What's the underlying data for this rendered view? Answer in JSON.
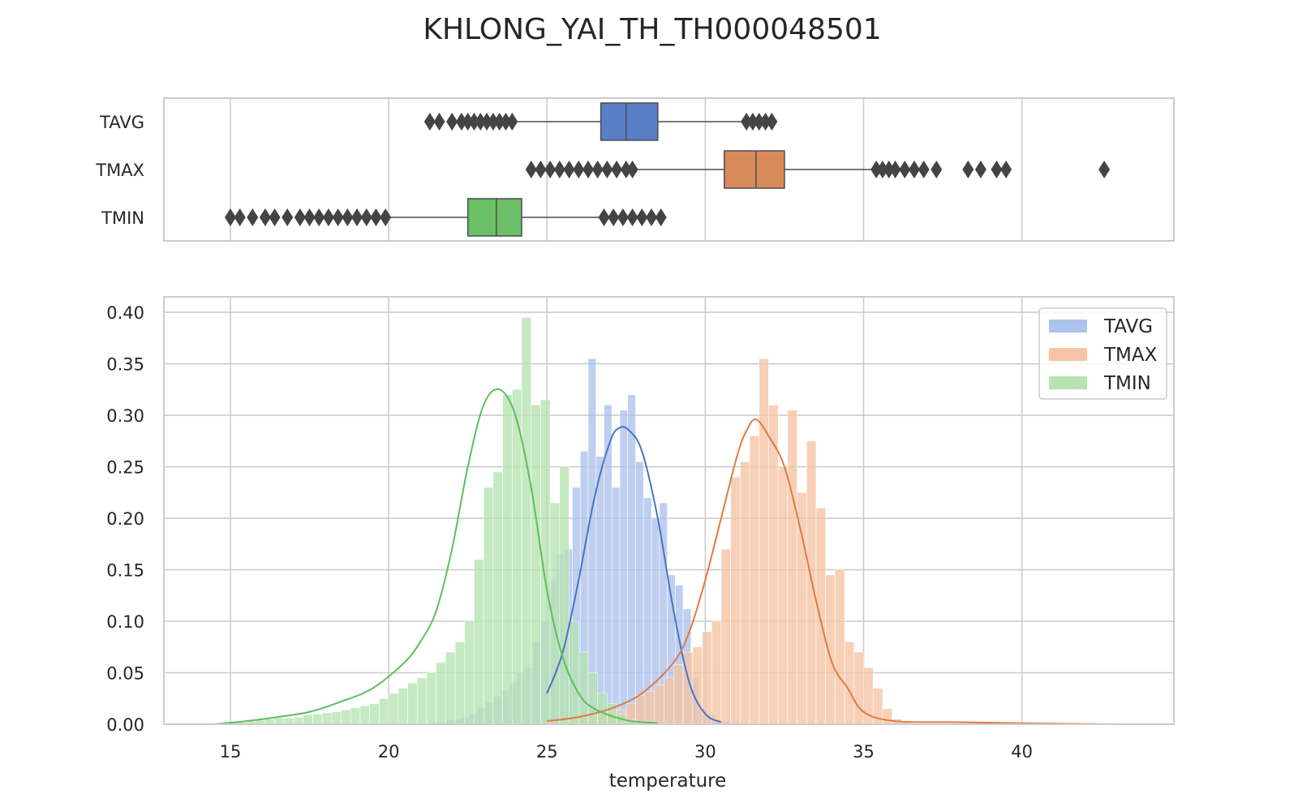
{
  "chart_data": {
    "title": "KHLONG_YAI_TH_TH000048501",
    "xlabel": "temperature",
    "xlim": [
      12.9,
      44.8
    ],
    "x_ticks": [
      15,
      20,
      25,
      30,
      35,
      40
    ],
    "grid": true,
    "colors": {
      "TAVG": "#4c72b0",
      "TMAX": "#dd8452",
      "TMIN": "#55a868"
    },
    "box_colors": {
      "TAVG": "#5a7fc6",
      "TMAX": "#d98a5a",
      "TMIN": "#6bbf66"
    },
    "kde_colors": {
      "TAVG": "#4a74c4",
      "TMAX": "#e07b40",
      "TMIN": "#5cbf5c"
    },
    "hist_colors": {
      "TAVG": "#adc2ec",
      "TMAX": "#f6c4a4",
      "TMIN": "#b6e3b0"
    },
    "boxplot": {
      "type": "box",
      "categories": [
        "TAVG",
        "TMAX",
        "TMIN"
      ],
      "series": [
        {
          "name": "TAVG",
          "q1": 26.7,
          "median": 27.5,
          "q3": 28.5,
          "whisker_low": 24.0,
          "whisker_high": 31.2,
          "outliers": [
            21.3,
            21.6,
            22.0,
            22.3,
            22.5,
            22.7,
            22.9,
            23.1,
            23.3,
            23.5,
            23.7,
            23.9,
            31.3,
            31.5,
            31.7,
            31.9,
            32.1
          ]
        },
        {
          "name": "TMAX",
          "q1": 30.6,
          "median": 31.6,
          "q3": 32.5,
          "whisker_low": 27.8,
          "whisker_high": 35.3,
          "outliers": [
            24.5,
            24.8,
            25.1,
            25.4,
            25.7,
            26.0,
            26.3,
            26.6,
            26.9,
            27.2,
            27.5,
            27.7,
            35.4,
            35.6,
            35.8,
            36.0,
            36.3,
            36.6,
            36.9,
            37.3,
            38.3,
            38.7,
            39.2,
            39.5,
            42.6
          ]
        },
        {
          "name": "TMIN",
          "q1": 22.5,
          "median": 23.4,
          "q3": 24.2,
          "whisker_low": 20.0,
          "whisker_high": 26.7,
          "outliers": [
            15.0,
            15.3,
            15.7,
            16.1,
            16.4,
            16.8,
            17.2,
            17.5,
            17.8,
            18.1,
            18.4,
            18.7,
            19.0,
            19.3,
            19.6,
            19.9,
            26.8,
            27.1,
            27.4,
            27.7,
            28.0,
            28.3,
            28.6
          ]
        }
      ]
    },
    "distribution": {
      "type": "histogram",
      "ylim": [
        0,
        0.415
      ],
      "y_ticks": [
        0.0,
        0.05,
        0.1,
        0.15,
        0.2,
        0.25,
        0.3,
        0.35,
        0.4
      ],
      "y_tick_labels": [
        "0.00",
        "0.05",
        "0.10",
        "0.15",
        "0.20",
        "0.25",
        "0.30",
        "0.35",
        "0.40"
      ],
      "legend": {
        "position": "top-right",
        "entries": [
          "TAVG",
          "TMAX",
          "TMIN"
        ]
      },
      "series": [
        {
          "name": "TAVG",
          "bin_start": 21.3,
          "bin_width": 0.25,
          "density": [
            0.002,
            0.002,
            0.004,
            0.005,
            0.007,
            0.01,
            0.016,
            0.021,
            0.027,
            0.033,
            0.04,
            0.05,
            0.055,
            0.08,
            0.1,
            0.14,
            0.165,
            0.17,
            0.23,
            0.265,
            0.355,
            0.26,
            0.31,
            0.23,
            0.305,
            0.32,
            0.255,
            0.22,
            0.2,
            0.215,
            0.145,
            0.135,
            0.112,
            0.045,
            0.015,
            0.01,
            0.005,
            0.003,
            0.002,
            0.001
          ],
          "kde_x": [
            25.0,
            25.5,
            26.0,
            26.5,
            27.0,
            27.3,
            27.6,
            28.0,
            28.5,
            29.0,
            29.5,
            30.0,
            30.5
          ],
          "kde_y": [
            0.03,
            0.07,
            0.14,
            0.22,
            0.275,
            0.288,
            0.285,
            0.265,
            0.2,
            0.11,
            0.04,
            0.01,
            0.002
          ]
        },
        {
          "name": "TMAX",
          "bin_start": 24.5,
          "bin_width": 0.3,
          "density": [
            0.001,
            0.002,
            0.003,
            0.004,
            0.005,
            0.007,
            0.008,
            0.01,
            0.012,
            0.014,
            0.02,
            0.028,
            0.032,
            0.038,
            0.045,
            0.058,
            0.07,
            0.075,
            0.09,
            0.1,
            0.17,
            0.24,
            0.255,
            0.28,
            0.355,
            0.31,
            0.25,
            0.305,
            0.225,
            0.275,
            0.21,
            0.145,
            0.15,
            0.08,
            0.07,
            0.055,
            0.035,
            0.015,
            0.005,
            0.003
          ],
          "kde_x": [
            25.0,
            26.0,
            27.0,
            28.0,
            29.0,
            29.5,
            30.0,
            30.5,
            31.0,
            31.3,
            31.6,
            32.0,
            32.5,
            33.0,
            33.5,
            34.0,
            34.5,
            35.0,
            36.0,
            38.0,
            40.0,
            43.0
          ],
          "kde_y": [
            0.003,
            0.007,
            0.015,
            0.03,
            0.06,
            0.09,
            0.14,
            0.2,
            0.26,
            0.285,
            0.296,
            0.28,
            0.25,
            0.19,
            0.12,
            0.06,
            0.035,
            0.012,
            0.003,
            0.002,
            0.001,
            0.0
          ]
        },
        {
          "name": "TMIN",
          "bin_start": 14.9,
          "bin_width": 0.3,
          "density": [
            0.002,
            0.002,
            0.003,
            0.004,
            0.005,
            0.006,
            0.006,
            0.007,
            0.009,
            0.01,
            0.011,
            0.012,
            0.014,
            0.016,
            0.018,
            0.02,
            0.025,
            0.03,
            0.035,
            0.04,
            0.045,
            0.05,
            0.06,
            0.07,
            0.08,
            0.1,
            0.16,
            0.23,
            0.245,
            0.32,
            0.325,
            0.395,
            0.31,
            0.315,
            0.215,
            0.25,
            0.1,
            0.07,
            0.05,
            0.03,
            0.02,
            0.01,
            0.004,
            0.002
          ],
          "kde_x": [
            14.5,
            15.5,
            16.5,
            17.5,
            18.5,
            19.5,
            20.5,
            21.0,
            21.5,
            22.0,
            22.5,
            23.0,
            23.5,
            24.0,
            24.5,
            25.0,
            25.5,
            26.0,
            26.5,
            27.5,
            28.5
          ],
          "kde_y": [
            0.0,
            0.003,
            0.007,
            0.012,
            0.022,
            0.035,
            0.06,
            0.08,
            0.11,
            0.17,
            0.25,
            0.31,
            0.325,
            0.3,
            0.23,
            0.13,
            0.065,
            0.03,
            0.015,
            0.004,
            0.001
          ]
        }
      ]
    }
  }
}
